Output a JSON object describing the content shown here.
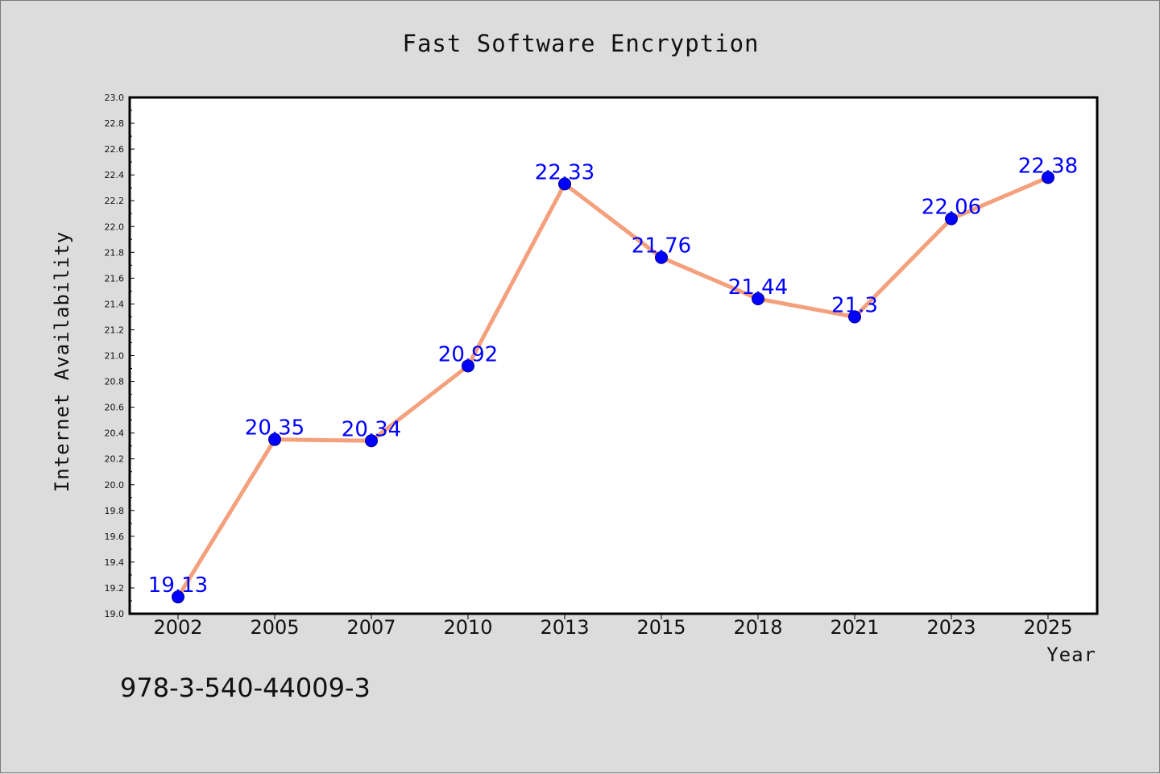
{
  "chart_data": {
    "type": "line",
    "title": "Fast Software Encryption",
    "xlabel": "Year",
    "ylabel": "Internet Availability",
    "categories": [
      "2002",
      "2005",
      "2007",
      "2010",
      "2013",
      "2015",
      "2018",
      "2021",
      "2023",
      "2025"
    ],
    "series": [
      {
        "values": [
          19.13,
          20.35,
          20.34,
          20.92,
          22.33,
          21.76,
          21.44,
          21.3,
          22.06,
          22.38
        ],
        "labels": [
          "19.13",
          "20.35",
          "20.34",
          "20.92",
          "22.33",
          "21.76",
          "21.44",
          "21.3",
          "22.06",
          "22.38"
        ],
        "line_color": "#f4a07c",
        "marker_color": "#0000ff"
      }
    ],
    "ylim": [
      19.0,
      23.0
    ],
    "ytick_labels": [
      "19.0",
      "19.2",
      "19.4",
      "19.6",
      "19.8",
      "20.0",
      "20.2",
      "20.4",
      "20.6",
      "20.8",
      "21.0",
      "21.2",
      "21.4",
      "21.6",
      "21.8",
      "22.0",
      "22.2",
      "22.4",
      "22.6",
      "22.8",
      "23.0"
    ],
    "grid": false,
    "data_label_color": "#0000ff",
    "background_color": "#dcdcdc",
    "plot_background_color": "#ffffff"
  },
  "footer_text": "978-3-540-44009-3"
}
